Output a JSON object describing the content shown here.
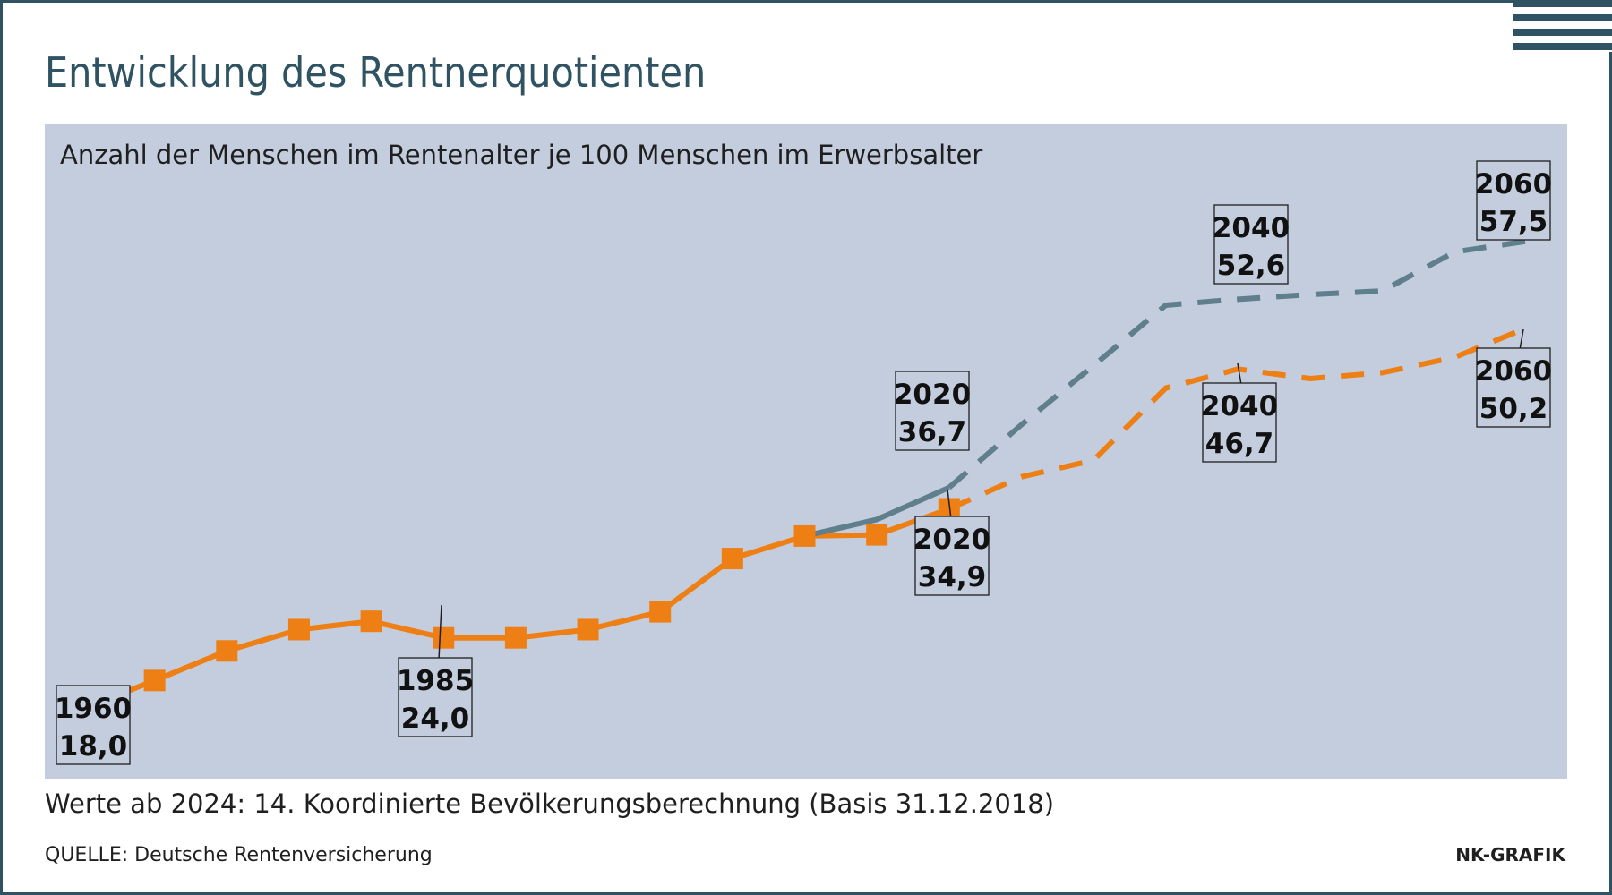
{
  "header": {
    "title": "Entwicklung des Rentnerquotienten"
  },
  "footer": {
    "note": "Werte ab 2024: 14. Koordinierte Bevölkerungsberechnung (Basis 31.12.2018)",
    "source": "QUELLE: Deutsche Rentenversicherung",
    "credit": "NK-GRAFIK"
  },
  "colors": {
    "background_panel": "#c4cddd",
    "orange": "#ee7f14",
    "blue_gray": "#5f7f8d",
    "title": "#2f5362",
    "frame": "#2f5362"
  },
  "chart_data": {
    "type": "line",
    "title": "Entwicklung des Rentnerquotienten",
    "subtitle": "Anzahl der Menschen im Rentenalter je 100 Menschen im Erwerbsalter",
    "xlabel": "",
    "ylabel": "",
    "xlim": [
      1960,
      2060
    ],
    "ylim": [
      14,
      62
    ],
    "grid": false,
    "legend": "none",
    "series": [
      {
        "name": "orange historical",
        "style": "solid-with-squares",
        "color": "#ee7f14",
        "x": [
          1960,
          1965,
          1970,
          1975,
          1980,
          1985,
          1990,
          1995,
          2000,
          2005,
          2010,
          2015,
          2020
        ],
        "values": [
          18.0,
          20.4,
          22.9,
          24.7,
          25.4,
          24.0,
          24.0,
          24.7,
          26.2,
          30.7,
          32.6,
          32.7,
          34.9
        ]
      },
      {
        "name": "blue-gray historical",
        "style": "solid",
        "color": "#5f7f8d",
        "x": [
          2010,
          2015,
          2020
        ],
        "values": [
          32.6,
          34.0,
          36.7
        ]
      },
      {
        "name": "blue-gray projection",
        "style": "dashed",
        "color": "#5f7f8d",
        "x": [
          2020,
          2025,
          2030,
          2035,
          2040,
          2045,
          2050,
          2055,
          2060
        ],
        "values": [
          36.7,
          42.0,
          47.0,
          52.1,
          52.6,
          53.0,
          53.3,
          56.6,
          57.5
        ]
      },
      {
        "name": "orange projection",
        "style": "dashed",
        "color": "#ee7f14",
        "x": [
          2020,
          2025,
          2030,
          2035,
          2040,
          2045,
          2050,
          2055,
          2060
        ],
        "values": [
          34.9,
          37.6,
          39.0,
          45.1,
          46.7,
          45.9,
          46.4,
          47.7,
          50.2
        ]
      }
    ],
    "annotations": [
      {
        "year": "1960",
        "value": "18,0"
      },
      {
        "year": "1985",
        "value": "24,0"
      },
      {
        "year": "2020",
        "value": "36,7"
      },
      {
        "year": "2020",
        "value": "34,9"
      },
      {
        "year": "2040",
        "value": "52,6"
      },
      {
        "year": "2040",
        "value": "46,7"
      },
      {
        "year": "2060",
        "value": "57,5"
      },
      {
        "year": "2060",
        "value": "50,2"
      }
    ]
  }
}
